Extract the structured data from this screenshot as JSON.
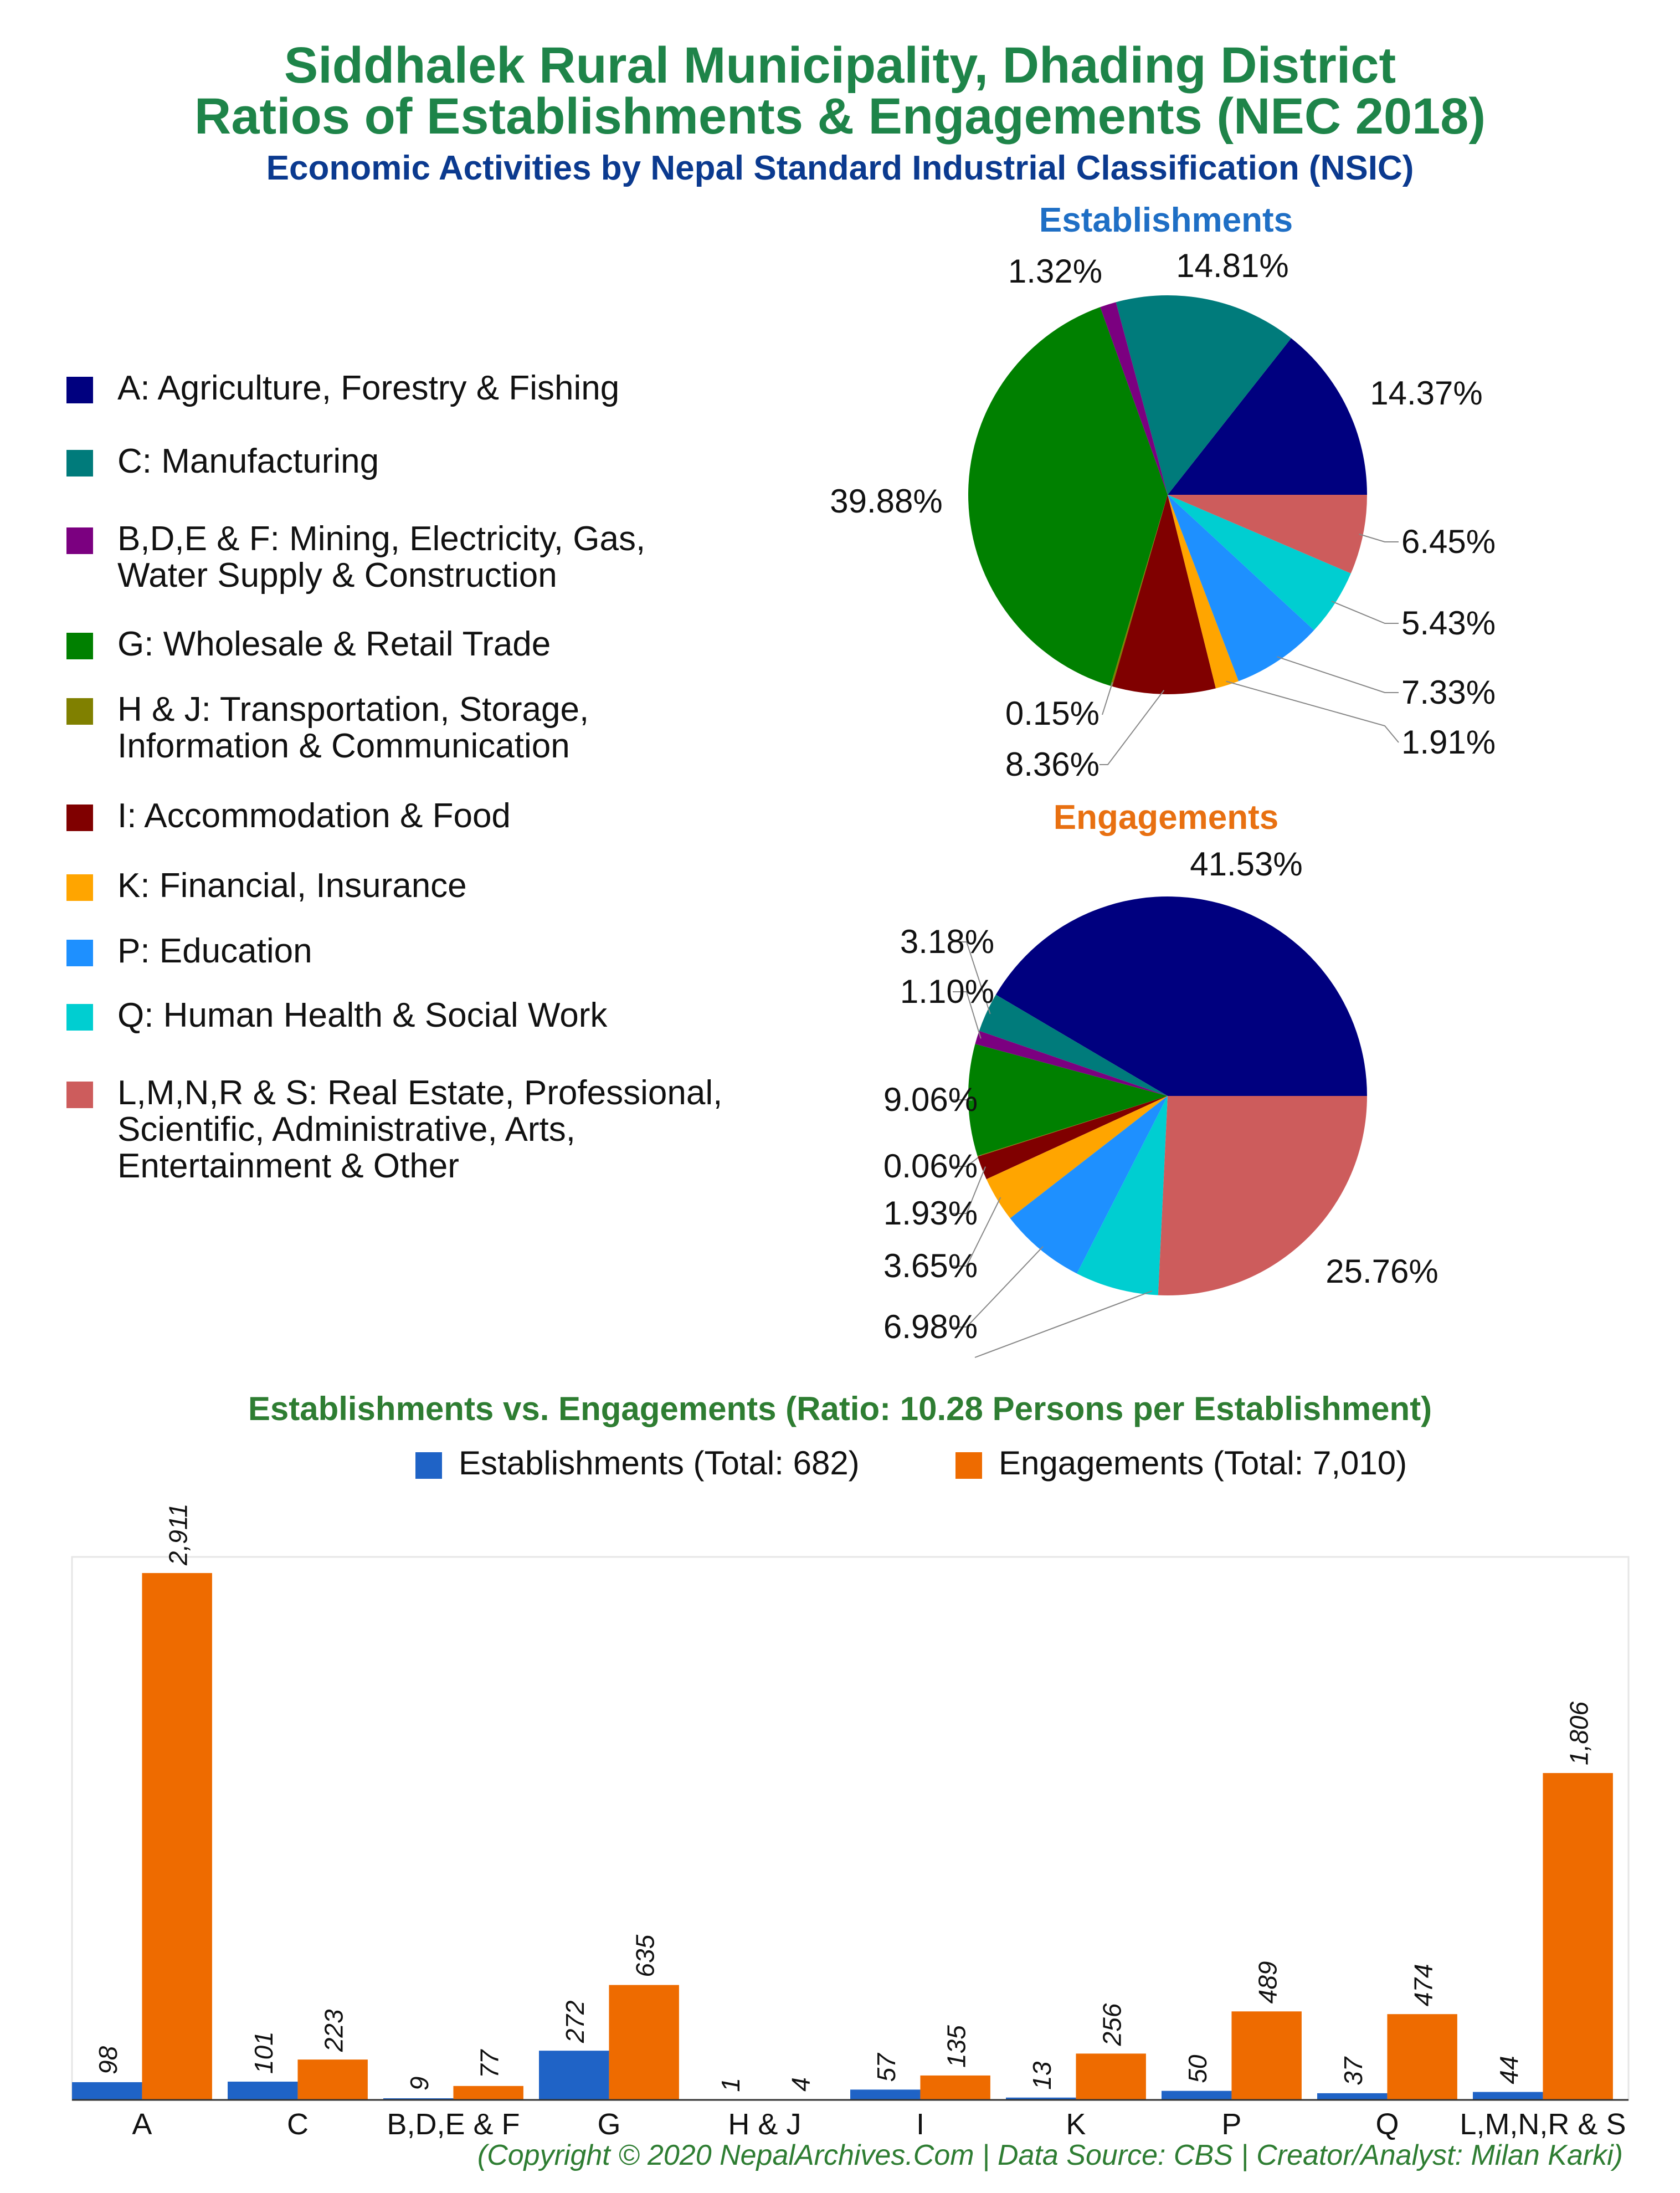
{
  "titles": {
    "line1": "Siddhalek Rural Municipality, Dhading District",
    "line2": "Ratios of Establishments & Engagements (NEC 2018)",
    "line3": "Economic Activities by Nepal Standard Industrial Classification (NSIC)"
  },
  "legend": [
    {
      "label": "A: Agriculture, Forestry & Fishing",
      "color": "#00007f"
    },
    {
      "label": "C: Manufacturing",
      "color": "#007b7b"
    },
    {
      "label": "B,D,E & F: Mining, Electricity, Gas,\nWater Supply & Construction",
      "color": "#7b0080"
    },
    {
      "label": "G: Wholesale & Retail Trade",
      "color": "#008000"
    },
    {
      "label": "H & J: Transportation, Storage,\nInformation & Communication",
      "color": "#808000"
    },
    {
      "label": "I: Accommodation & Food",
      "color": "#800000"
    },
    {
      "label": "K: Financial, Insurance",
      "color": "#ffa500"
    },
    {
      "label": "P: Education",
      "color": "#1e90ff"
    },
    {
      "label": "Q: Human Health & Social Work",
      "color": "#00ced1"
    },
    {
      "label": "L,M,N,R & S: Real Estate, Professional,\nScientific, Administrative, Arts,\nEntertainment & Other",
      "color": "#cd5c5c"
    }
  ],
  "chart_data": [
    {
      "type": "pie",
      "title": "Establishments",
      "categories": [
        "A",
        "C",
        "B,D,E & F",
        "G",
        "H & J",
        "I",
        "K",
        "P",
        "Q",
        "L,M,N,R & S"
      ],
      "values": [
        14.37,
        14.81,
        1.32,
        39.88,
        0.15,
        8.36,
        1.91,
        7.33,
        5.43,
        6.45
      ],
      "labels": [
        "14.37%",
        "14.81%",
        "1.32%",
        "39.88%",
        "0.15%",
        "8.36%",
        "1.91%",
        "7.33%",
        "5.43%",
        "6.45%"
      ]
    },
    {
      "type": "pie",
      "title": "Engagements",
      "categories": [
        "A",
        "C",
        "B,D,E & F",
        "G",
        "H & J",
        "I",
        "K",
        "P",
        "Q",
        "L,M,N,R & S"
      ],
      "values": [
        41.53,
        3.18,
        1.1,
        9.06,
        0.06,
        1.93,
        3.65,
        6.98,
        6.76,
        25.76
      ],
      "labels": [
        "41.53%",
        "3.18%",
        "1.10%",
        "9.06%",
        "0.06%",
        "1.93%",
        "3.65%",
        "6.98%",
        "",
        "25.76%"
      ]
    },
    {
      "type": "bar",
      "title": "Establishments vs. Engagements (Ratio: 10.28 Persons per Establishment)",
      "categories": [
        "A",
        "C",
        "B,D,E & F",
        "G",
        "H & J",
        "I",
        "K",
        "P",
        "Q",
        "L,M,N,R & S"
      ],
      "series": [
        {
          "name": "Establishments (Total: 682)",
          "color": "#1f63c6",
          "values": [
            98,
            101,
            9,
            272,
            1,
            57,
            13,
            50,
            37,
            44
          ],
          "labels": [
            "98",
            "101",
            "9",
            "272",
            "1",
            "57",
            "13",
            "50",
            "37",
            "44"
          ]
        },
        {
          "name": "Engagements (Total: 7,010)",
          "color": "#ee6b00",
          "values": [
            2911,
            223,
            77,
            635,
            4,
            135,
            256,
            489,
            474,
            1806
          ],
          "labels": [
            "2,911",
            "223",
            "77",
            "635",
            "4",
            "135",
            "256",
            "489",
            "474",
            "1,806"
          ]
        }
      ],
      "ylim": [
        0,
        3000
      ],
      "grid": false
    }
  ],
  "footer": "(Copyright © 2020 NepalArchives.Com | Data Source: CBS | Creator/Analyst: Milan Karki)"
}
